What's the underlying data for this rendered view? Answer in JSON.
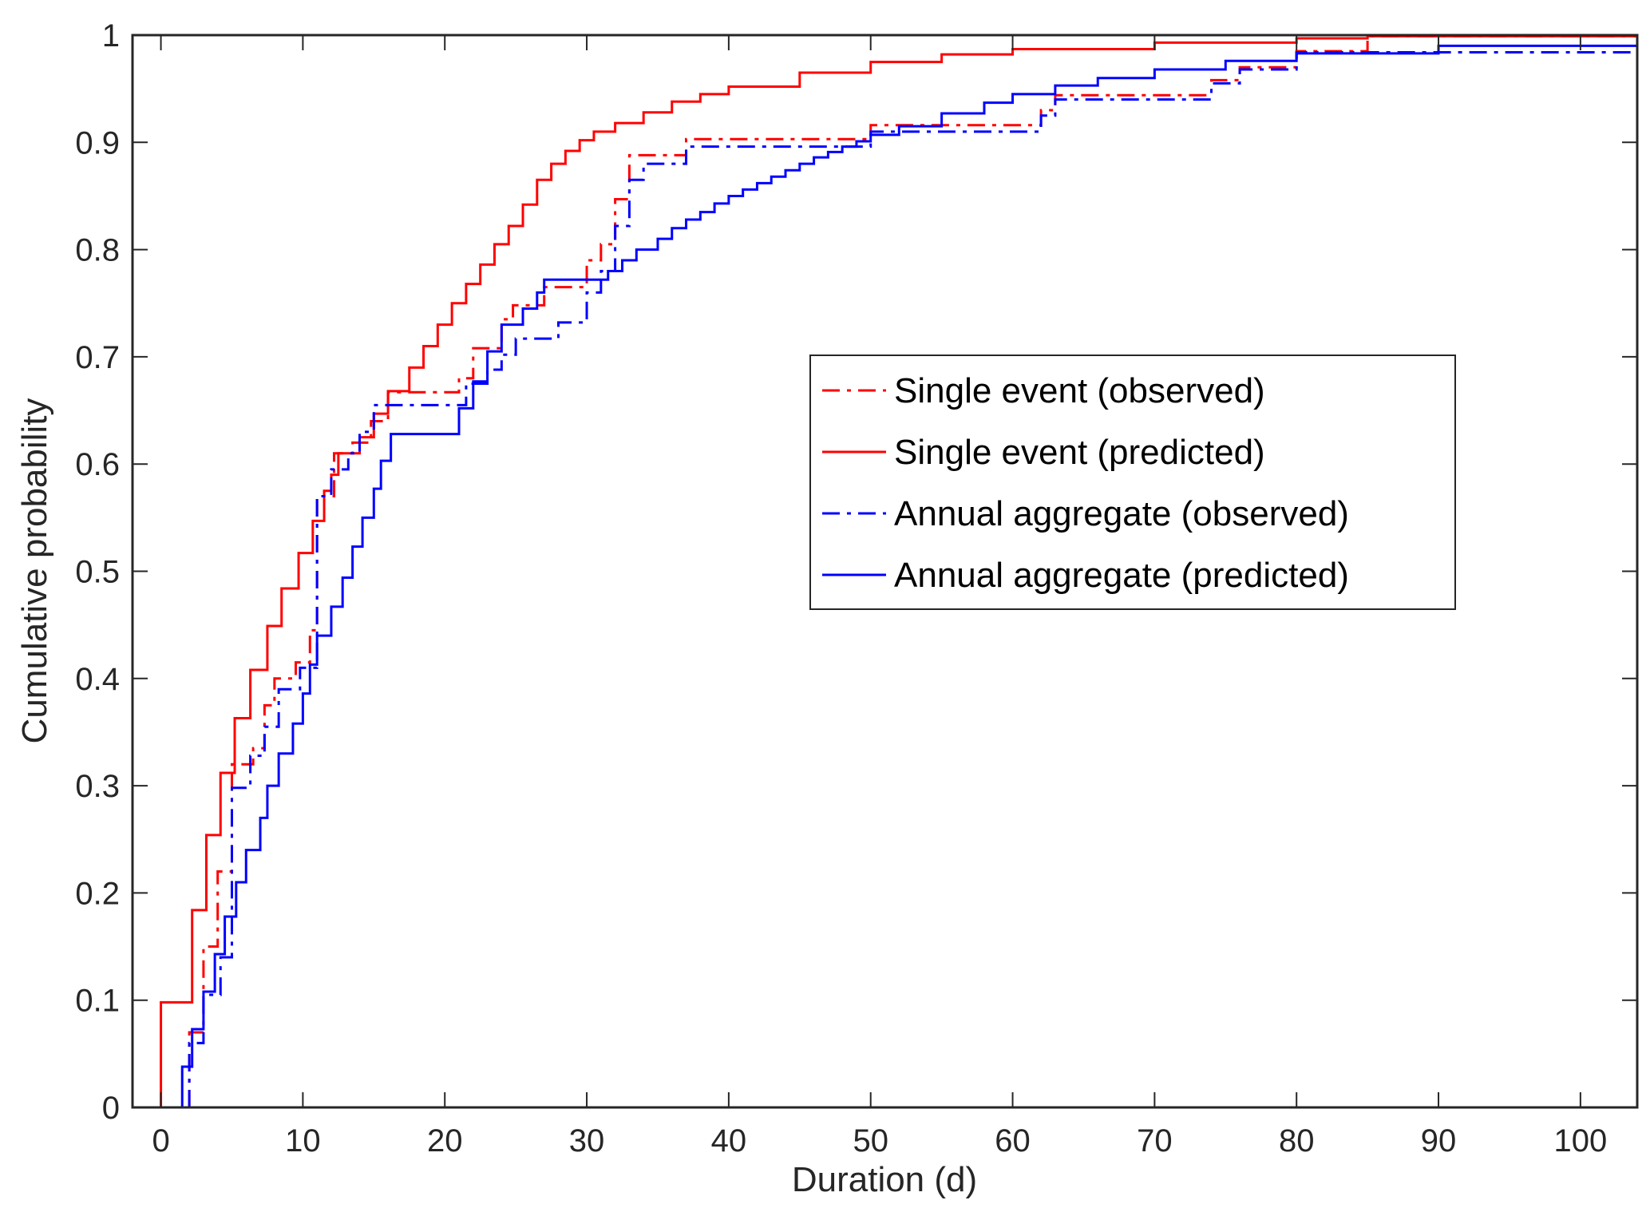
{
  "chart_data": {
    "type": "line",
    "title": "",
    "xlabel": "Duration (d)",
    "ylabel": "Cumulative probability",
    "xlim": [
      -2,
      104
    ],
    "ylim": [
      0,
      1
    ],
    "xticks": [
      0,
      10,
      20,
      30,
      40,
      50,
      60,
      70,
      80,
      90,
      100
    ],
    "yticks": [
      0,
      0.1,
      0.2,
      0.3,
      0.4,
      0.5,
      0.6,
      0.7,
      0.8,
      0.9,
      1
    ],
    "ytick_labels": [
      "0",
      "0.1",
      "0.2",
      "0.3",
      "0.4",
      "0.5",
      "0.6",
      "0.7",
      "0.8",
      "0.9",
      "1"
    ],
    "grid": false,
    "legend_position": "center-right",
    "series": [
      {
        "name": "Single event (observed)",
        "color": "#ff0000",
        "style": "dash-dot",
        "x": [
          2,
          3,
          4,
          5,
          6.5,
          7.3,
          8,
          9.5,
          10.5,
          11,
          12.2,
          13.5,
          14.8,
          16,
          21,
          22,
          24,
          24.8,
          27,
          30,
          31,
          32,
          33,
          37,
          50,
          62,
          63,
          74,
          76,
          80,
          85,
          104
        ],
        "y": [
          0.07,
          0.15,
          0.22,
          0.32,
          0.335,
          0.375,
          0.4,
          0.415,
          0.445,
          0.57,
          0.61,
          0.62,
          0.64,
          0.667,
          0.68,
          0.708,
          0.735,
          0.748,
          0.765,
          0.79,
          0.805,
          0.847,
          0.888,
          0.903,
          0.916,
          0.93,
          0.944,
          0.958,
          0.97,
          0.985,
          0.999,
          0.999
        ]
      },
      {
        "name": "Single event (predicted)",
        "color": "#ff0000",
        "style": "solid",
        "x": [
          0,
          2.2,
          3.2,
          4.2,
          5.2,
          6.3,
          7.5,
          8.5,
          9.7,
          10.7,
          11.5,
          12,
          12.5,
          14,
          15,
          16,
          17.5,
          18.5,
          19.5,
          20.5,
          21.5,
          22.5,
          23.5,
          24.5,
          25.5,
          26.5,
          27.5,
          28.5,
          29.5,
          30.5,
          32,
          34,
          36,
          38,
          40,
          45,
          50,
          55,
          60,
          70,
          80,
          85,
          104
        ],
        "y": [
          0.098,
          0.184,
          0.254,
          0.312,
          0.363,
          0.408,
          0.449,
          0.484,
          0.517,
          0.547,
          0.575,
          0.59,
          0.61,
          0.625,
          0.647,
          0.668,
          0.69,
          0.71,
          0.73,
          0.75,
          0.768,
          0.786,
          0.805,
          0.822,
          0.842,
          0.865,
          0.88,
          0.892,
          0.902,
          0.91,
          0.918,
          0.928,
          0.938,
          0.945,
          0.952,
          0.965,
          0.975,
          0.982,
          0.987,
          0.993,
          0.997,
          0.999,
          1.0
        ]
      },
      {
        "name": "Annual aggregate (observed)",
        "color": "#0000ff",
        "style": "dash-dot",
        "x": [
          2,
          3,
          4.2,
          5,
          6.3,
          7.3,
          8.3,
          9.8,
          11,
          12,
          13.2,
          14,
          15,
          21.5,
          23,
          24,
          25,
          28,
          30,
          31,
          32,
          33,
          34,
          37,
          50,
          62,
          63,
          74,
          76,
          80,
          104
        ],
        "y": [
          0.06,
          0.105,
          0.14,
          0.298,
          0.328,
          0.355,
          0.39,
          0.41,
          0.57,
          0.595,
          0.61,
          0.63,
          0.655,
          0.675,
          0.688,
          0.702,
          0.717,
          0.732,
          0.76,
          0.78,
          0.822,
          0.865,
          0.88,
          0.896,
          0.91,
          0.925,
          0.94,
          0.955,
          0.968,
          0.984,
          0.984
        ]
      },
      {
        "name": "Annual aggregate (predicted)",
        "color": "#0000ff",
        "style": "solid",
        "x": [
          1.5,
          2.2,
          3,
          3.8,
          4.5,
          5.3,
          6,
          7,
          7.5,
          8.3,
          9.3,
          10,
          10.5,
          11,
          12,
          12.8,
          13.5,
          14.2,
          15,
          15.5,
          16.2,
          21,
          22,
          23,
          24,
          25.5,
          26.5,
          27,
          31.5,
          32.5,
          33.5,
          35,
          36,
          37,
          38,
          39,
          40,
          41,
          42,
          43,
          44,
          45,
          46,
          47,
          48,
          49,
          50,
          52,
          55,
          58,
          60,
          63,
          66,
          70,
          75,
          80,
          90,
          104
        ],
        "y": [
          0.038,
          0.073,
          0.108,
          0.143,
          0.178,
          0.21,
          0.24,
          0.27,
          0.3,
          0.33,
          0.358,
          0.386,
          0.413,
          0.44,
          0.467,
          0.494,
          0.523,
          0.55,
          0.577,
          0.603,
          0.628,
          0.652,
          0.677,
          0.705,
          0.73,
          0.745,
          0.76,
          0.772,
          0.78,
          0.79,
          0.8,
          0.81,
          0.82,
          0.828,
          0.835,
          0.843,
          0.85,
          0.856,
          0.862,
          0.868,
          0.874,
          0.88,
          0.886,
          0.891,
          0.896,
          0.901,
          0.907,
          0.915,
          0.927,
          0.937,
          0.945,
          0.953,
          0.96,
          0.968,
          0.976,
          0.983,
          0.99,
          0.996
        ]
      }
    ]
  }
}
